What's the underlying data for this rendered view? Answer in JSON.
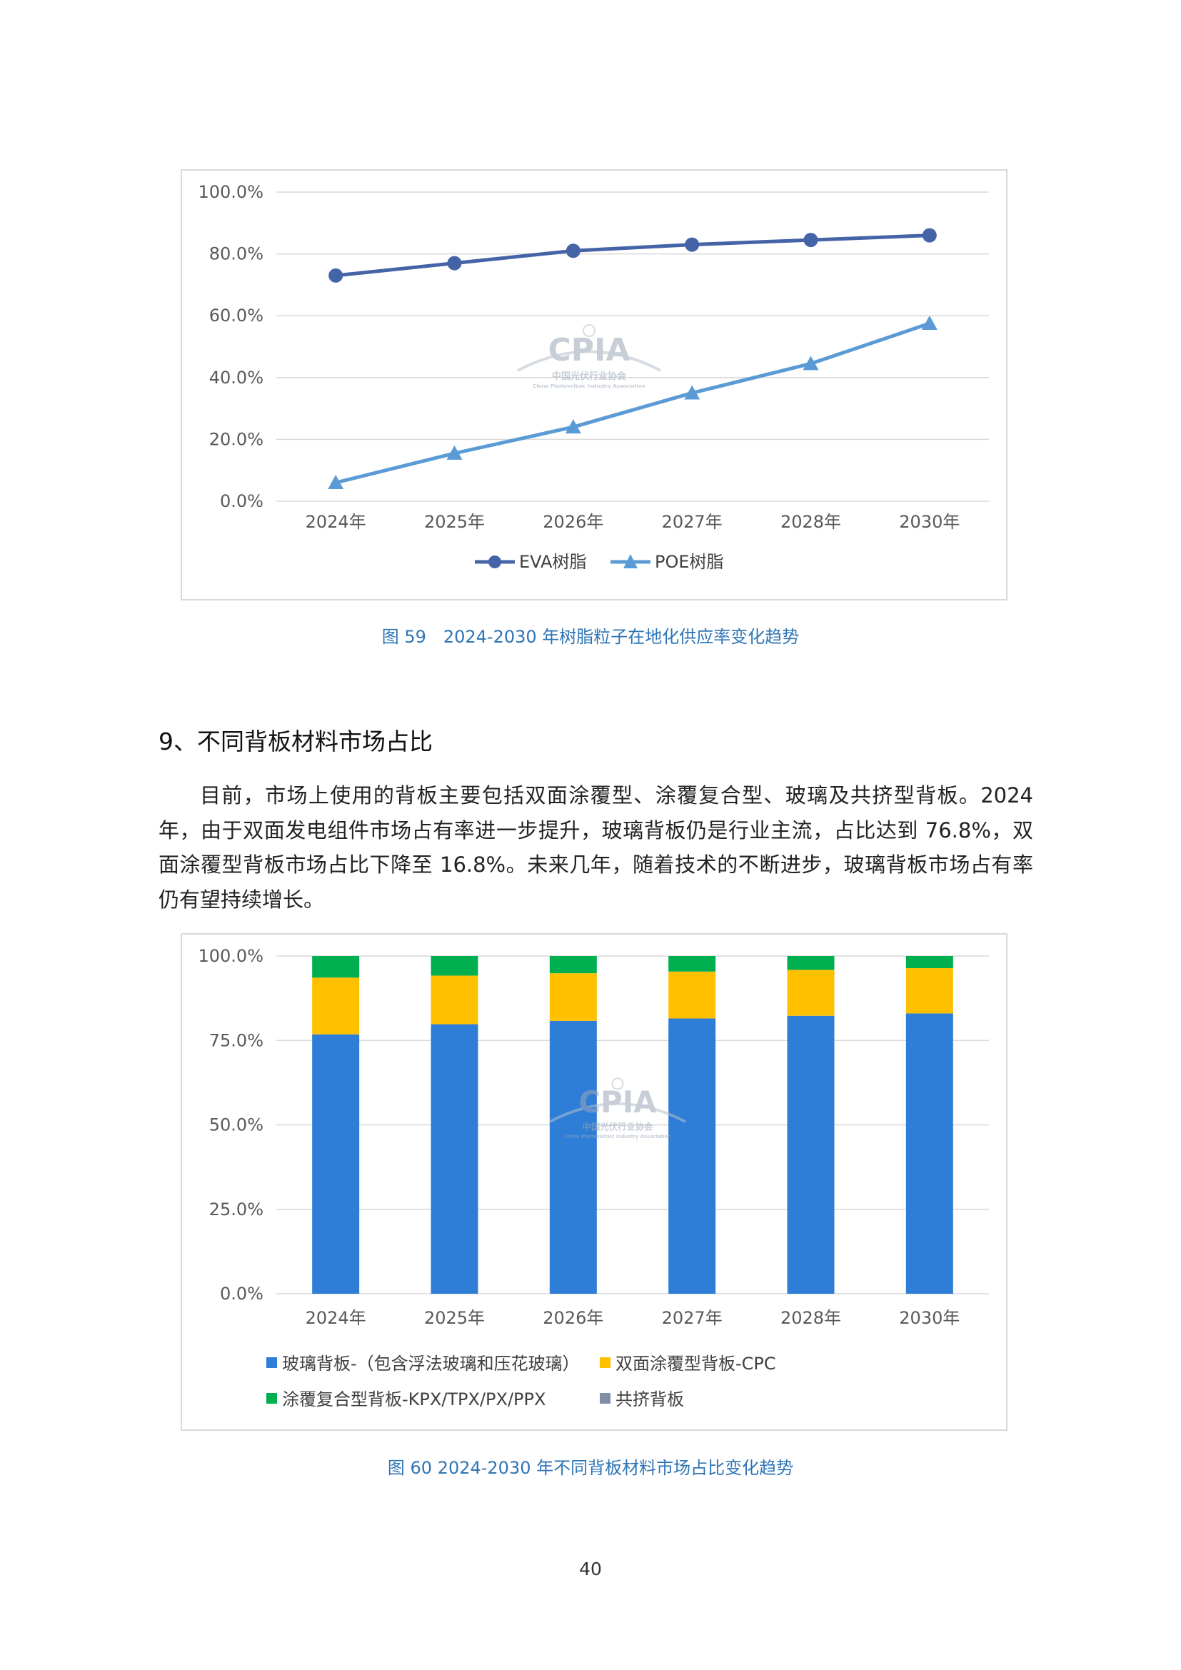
{
  "charts": {
    "chart1": {
      "caption": "图 59　2024-2030 年树脂粒子在地化供应率变化趋势",
      "watermark": {
        "main": "CPIA",
        "sub": "中国光伏行业协会",
        "sub2": "China Photovoltaic Industry Association"
      },
      "legend": [
        "EVA树脂",
        "POE树脂"
      ],
      "y_tick_labels": [
        "100.0%",
        "80.0%",
        "60.0%",
        "40.0%",
        "20.0%",
        "0.0%"
      ],
      "x_tick_labels": [
        "2024年",
        "2025年",
        "2026年",
        "2027年",
        "2028年",
        "2030年"
      ]
    },
    "chart2": {
      "caption": "图 60 2024-2030 年不同背板材料市场占比变化趋势",
      "watermark": {
        "main": "CPIA",
        "sub": "中国光伏行业协会",
        "sub2": "China Photovoltaic Industry Association"
      },
      "legend": [
        "玻璃背板-（包含浮法玻璃和压花玻璃）",
        "双面涂覆型背板-CPC",
        "涂覆复合型背板-KPX/TPX/PX/PPX",
        "共挤背板"
      ],
      "y_tick_labels": [
        "100.0%",
        "75.0%",
        "50.0%",
        "25.0%",
        "0.0%"
      ],
      "x_tick_labels": [
        "2024年",
        "2025年",
        "2026年",
        "2027年",
        "2028年",
        "2030年"
      ]
    }
  },
  "section": {
    "heading": "9、不同背板材料市场占比",
    "paragraph": "目前，市场上使用的背板主要包括双面涂覆型、涂覆复合型、玻璃及共挤型背板。2024 年，由于双面发电组件市场占有率进一步提升，玻璃背板仍是行业主流，占比达到 76.8%，双面涂覆型背板市场占比下降至 16.8%。未来几年，随着技术的不断进步，玻璃背板市场占有率仍有望持续增长。"
  },
  "page_number": "40",
  "chart_data": [
    {
      "type": "line",
      "categories": [
        "2024年",
        "2025年",
        "2026年",
        "2027年",
        "2028年",
        "2030年"
      ],
      "series": [
        {
          "name": "EVA树脂",
          "values": [
            73.0,
            77.0,
            81.0,
            83.0,
            84.5,
            86.0
          ],
          "color": "#4564a8",
          "marker": "circle"
        },
        {
          "name": "POE树脂",
          "values": [
            6.0,
            15.5,
            24.0,
            35.0,
            44.5,
            57.5
          ],
          "color": "#5b9bd5",
          "marker": "triangle"
        }
      ],
      "ylim": [
        0,
        100
      ],
      "grid": true,
      "legend_position": "bottom"
    },
    {
      "type": "bar",
      "stacked": true,
      "categories": [
        "2024年",
        "2025年",
        "2026年",
        "2027年",
        "2028年",
        "2030年"
      ],
      "series": [
        {
          "name": "玻璃背板-（包含浮法玻璃和压花玻璃）",
          "values": [
            76.8,
            79.8,
            80.8,
            81.5,
            82.3,
            83.0
          ],
          "color": "#2e7dd6"
        },
        {
          "name": "双面涂覆型背板-CPC",
          "values": [
            16.8,
            14.4,
            14.1,
            13.9,
            13.6,
            13.4
          ],
          "color": "#ffc000"
        },
        {
          "name": "涂覆复合型背板-KPX/TPX/PX/PPX",
          "values": [
            6.4,
            5.8,
            5.1,
            4.6,
            4.1,
            3.6
          ],
          "color": "#00b050"
        },
        {
          "name": "共挤背板",
          "values": [
            0,
            0,
            0,
            0,
            0,
            0
          ],
          "color": "#7f8fa6"
        }
      ],
      "ylim": [
        0,
        100
      ],
      "grid": true,
      "legend_position": "bottom"
    }
  ]
}
